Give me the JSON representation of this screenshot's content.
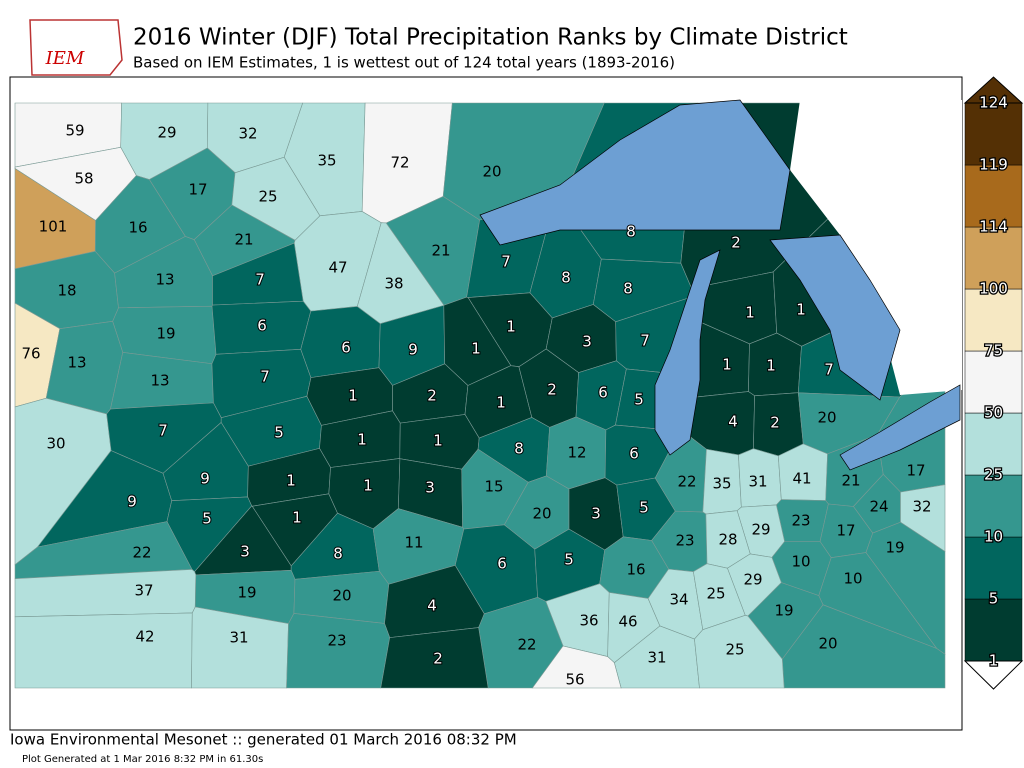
{
  "header": {
    "logo": "IEM",
    "title": "2016 Winter (DJF) Total Precipitation Ranks by Climate District",
    "subtitle": "Based on IEM Estimates, 1 is wettest out of 124 total years (1893-2016)"
  },
  "map": {
    "districts": [
      59,
      29,
      32,
      58,
      17,
      25,
      101,
      16,
      21,
      35,
      72,
      20,
      47,
      38,
      21,
      18,
      13,
      7,
      19,
      6,
      76,
      13,
      13,
      7,
      6,
      9,
      7,
      8,
      8,
      2,
      8,
      1,
      1,
      3,
      7,
      1,
      1,
      1,
      1,
      7,
      30,
      7,
      5,
      1,
      2,
      1,
      2,
      6,
      5,
      4,
      2,
      20,
      1,
      1,
      8,
      12,
      6,
      9,
      9,
      1,
      5,
      1,
      1,
      3,
      15,
      20,
      3,
      5,
      22,
      35,
      31,
      41,
      21,
      17,
      24,
      32,
      23,
      17,
      19,
      29,
      23,
      28,
      22,
      3,
      8,
      11,
      6,
      5,
      16,
      10,
      10,
      29,
      37,
      19,
      20,
      4,
      36,
      46,
      34,
      25,
      19,
      42,
      31,
      23,
      22,
      20,
      31,
      25,
      2,
      56
    ],
    "colorbar": {
      "levels": [
        1,
        5,
        10,
        25,
        50,
        75,
        100,
        114,
        119,
        124
      ],
      "colors": [
        "#003c30",
        "#01665e",
        "#35978f",
        "#b3e0dc",
        "#f5f5f5",
        "#f6e8c3",
        "#cfa05a",
        "#a86a1c",
        "#543005"
      ]
    }
  },
  "footer": {
    "line1": "Iowa Environmental Mesonet :: generated 01 March 2016 08:32 PM",
    "line2": "Plot Generated at 1 Mar 2016 8:32 PM in 61.30s"
  }
}
